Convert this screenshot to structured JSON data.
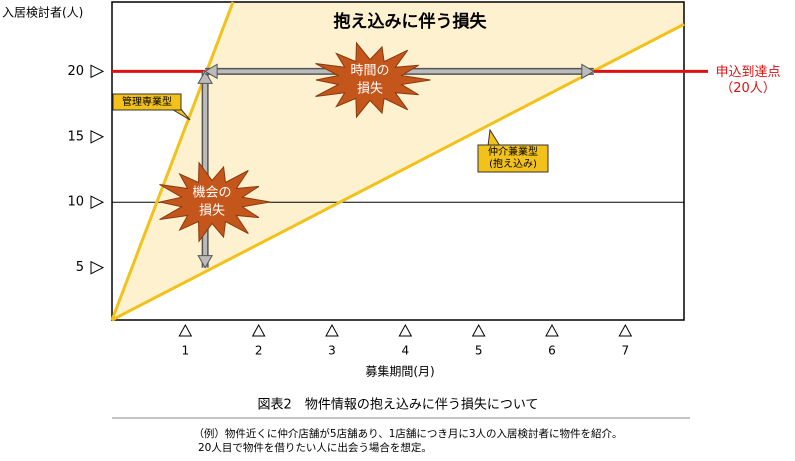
{
  "chart_data": {
    "type": "line",
    "title": "抱え込みに伴う損失",
    "y_label": "入居検討者(人)",
    "x_label": "募集期間(月)",
    "series": [
      {
        "name": "管理専業型",
        "color": "#f2c21b",
        "x": [
          0,
          1.65
        ],
        "values": [
          1,
          25.3
        ]
      },
      {
        "name": [
          "仲介兼業型",
          "(抱え込み)"
        ],
        "color": "#f2c21b",
        "x": [
          0,
          7.8
        ],
        "values": [
          1,
          23.6
        ]
      }
    ],
    "area_color": "#fdf1cf",
    "xlim": [
      0,
      7.8
    ],
    "xticks": [
      1,
      2,
      3,
      4,
      5,
      6,
      7
    ],
    "ylim": [
      1,
      25.3
    ],
    "yticks": [
      5,
      10,
      15,
      20
    ],
    "hline": {
      "value": 10,
      "color": "#000000"
    },
    "target": {
      "value": 20,
      "color": "#e01010",
      "label": [
        "申込到達点",
        "（20人）"
      ]
    },
    "arrows": [
      {
        "x": [
          1.27,
          1.27
        ],
        "y": [
          20,
          5
        ]
      },
      {
        "x": [
          1.27,
          6.57
        ],
        "y": [
          20,
          20
        ]
      }
    ],
    "bursts": [
      [
        "時間の",
        "損失"
      ],
      [
        "機会の",
        "損失"
      ]
    ],
    "caption": "図表2　物件情報の抱え込みに伴う損失について",
    "notes": [
      "（例）物件近くに仲介店舗が5店舗あり、1店舗につき月に3人の入居検討者に物件を紹介。",
      "20人目で物件を借りたい人に出会う場合を想定。"
    ]
  }
}
